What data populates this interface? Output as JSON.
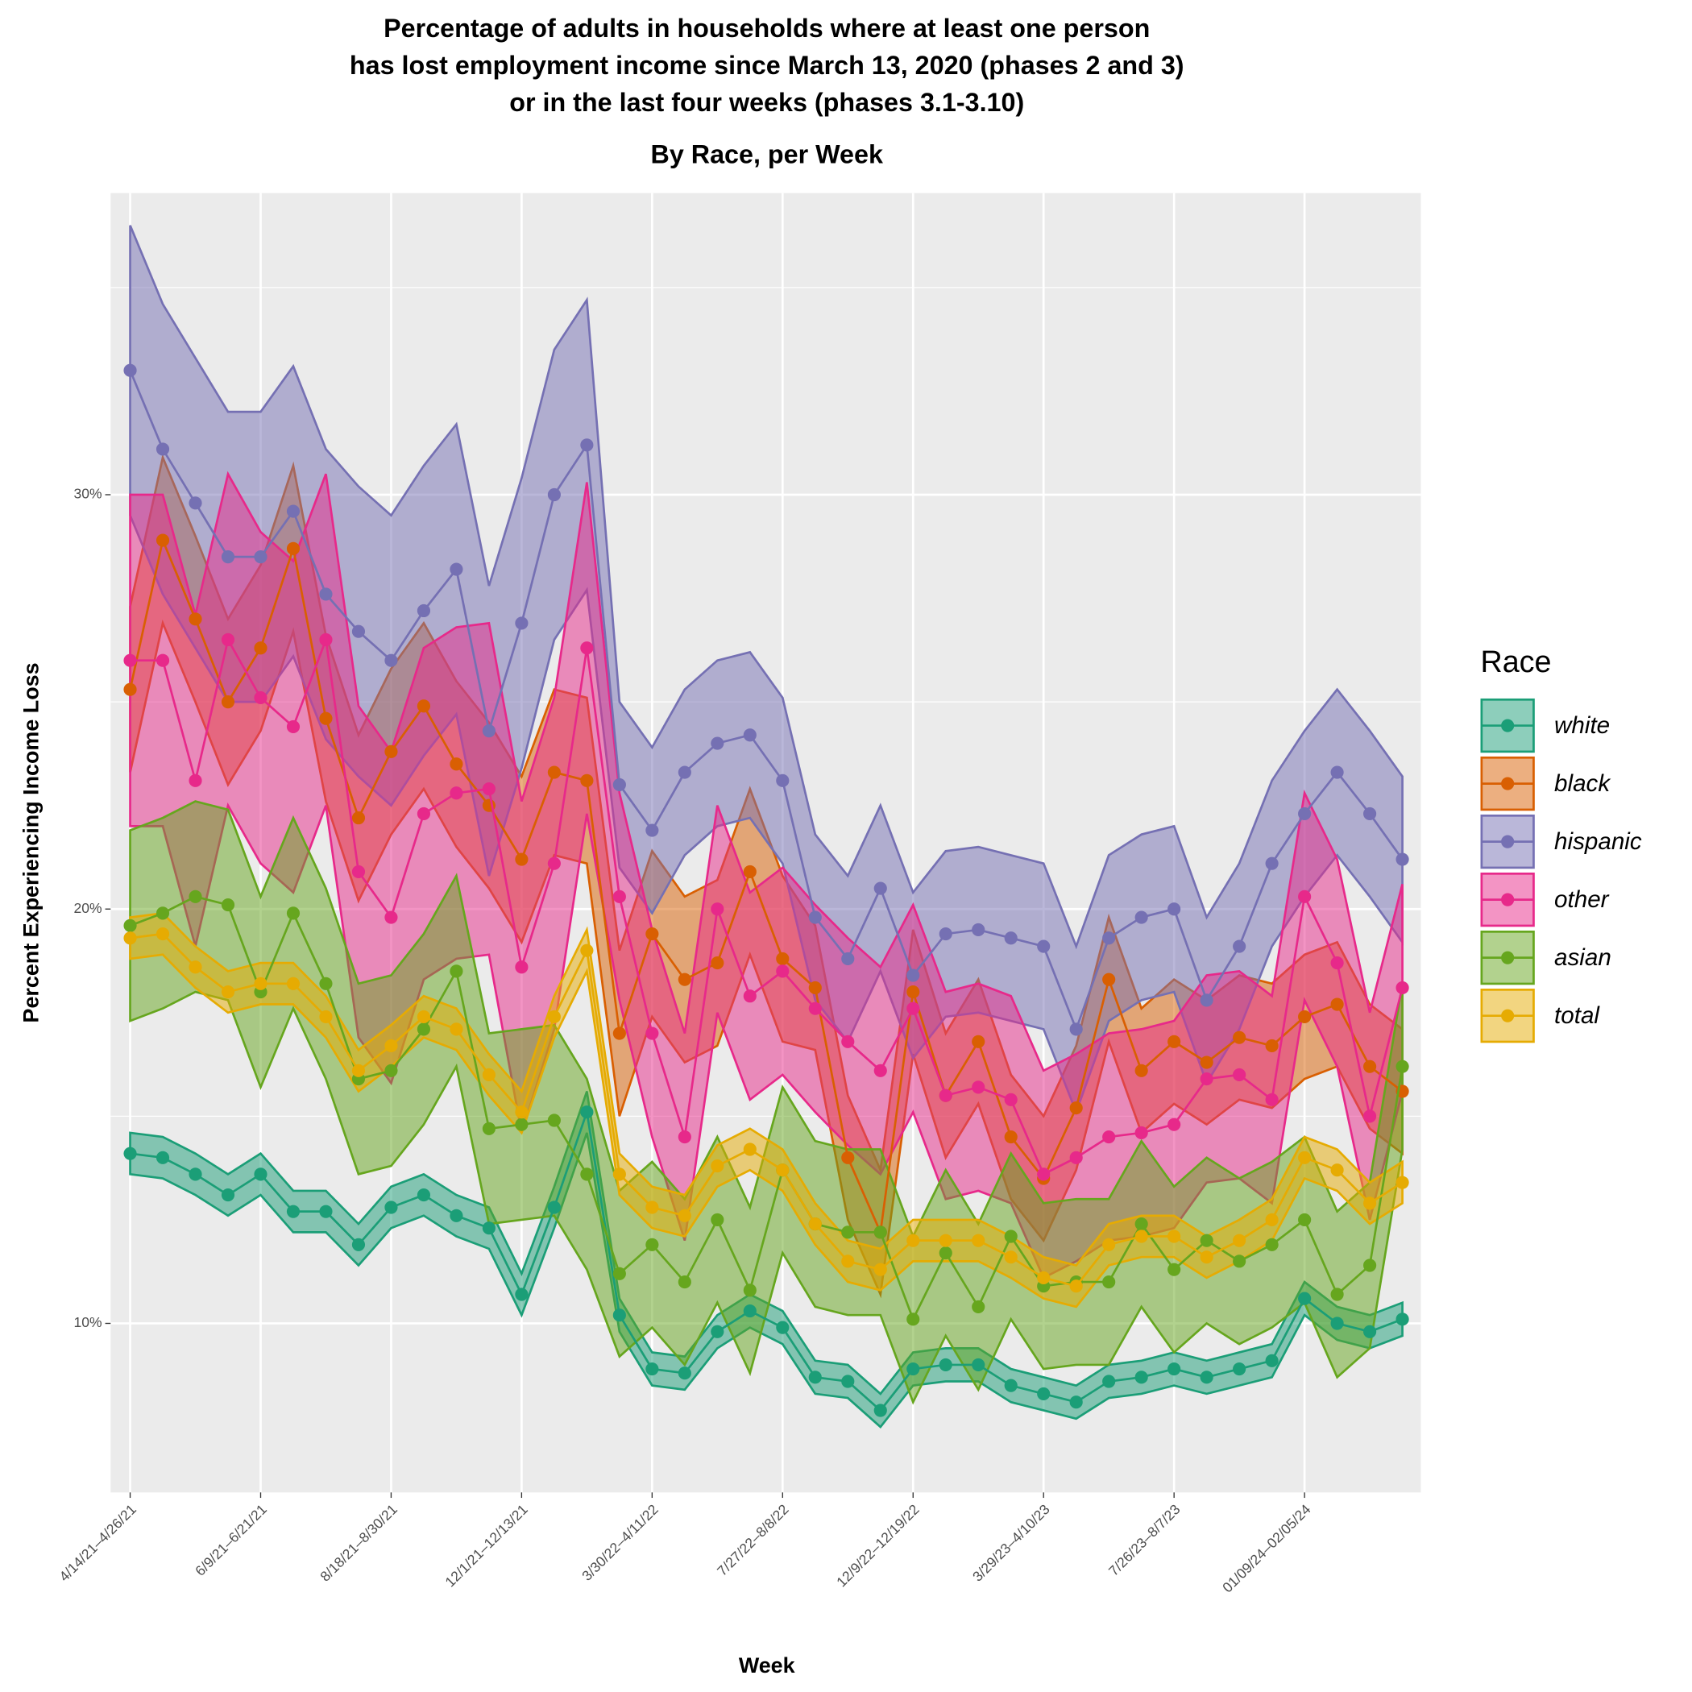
{
  "chart_data": {
    "type": "ribbon-line",
    "title": [
      "Percentage of adults in households where at least one person",
      "has lost employment income since March 13, 2020 (phases 2 and 3)",
      "or in the last four weeks (phases 3.1-3.10)"
    ],
    "subtitle": "By Race, per Week",
    "x_label": "Week",
    "y_label": "Percent Experiencing Income Loss",
    "legend_title": "Race",
    "legend": "right",
    "grid": true,
    "categories": [
      "4/14/21–4/26/21",
      null,
      null,
      null,
      "6/9/21–6/21/21",
      null,
      null,
      null,
      "8/18/21–8/30/21",
      null,
      null,
      null,
      "12/1/21–12/13/21",
      null,
      null,
      null,
      "3/30/22–4/11/22",
      null,
      null,
      null,
      "7/27/22–8/8/22",
      null,
      null,
      null,
      "12/9/22–12/19/22",
      null,
      null,
      null,
      "3/29/23–4/10/23",
      null,
      null,
      null,
      "7/26/23–8/7/23",
      null,
      null,
      null,
      "01/09/24–02/05/24",
      null,
      null,
      null
    ],
    "ylim": [
      5.92,
      37.28
    ],
    "yticks": [
      {
        "value": 10,
        "label": "10%"
      },
      {
        "value": 20,
        "label": "20%"
      },
      {
        "value": 30,
        "label": "30%"
      }
    ],
    "minor_yticks": [
      15,
      25,
      35
    ],
    "series": [
      {
        "name": "white",
        "color": "#1b9e77",
        "values": [
          14.1,
          14.0,
          13.6,
          13.1,
          13.6,
          12.7,
          12.7,
          11.9,
          12.8,
          13.1,
          12.6,
          12.3,
          10.7,
          12.8,
          15.1,
          10.2,
          8.9,
          8.8,
          9.8,
          10.3,
          9.9,
          8.7,
          8.6,
          7.9,
          8.9,
          9.0,
          9.0,
          8.5,
          8.3,
          8.1,
          8.6,
          8.7,
          8.9,
          8.7,
          8.9,
          9.1,
          10.6,
          10.0,
          9.8,
          10.1
        ],
        "errors": [
          0.5,
          0.5,
          0.5,
          0.5,
          0.5,
          0.5,
          0.5,
          0.5,
          0.5,
          0.5,
          0.5,
          0.5,
          0.5,
          0.5,
          0.5,
          0.4,
          0.4,
          0.4,
          0.4,
          0.4,
          0.4,
          0.4,
          0.4,
          0.4,
          0.4,
          0.4,
          0.4,
          0.4,
          0.4,
          0.4,
          0.4,
          0.4,
          0.4,
          0.4,
          0.4,
          0.4,
          0.4,
          0.4,
          0.4,
          0.4
        ]
      },
      {
        "name": "black",
        "color": "#d95f02",
        "values": [
          25.3,
          28.9,
          27.0,
          25.0,
          26.3,
          28.7,
          24.6,
          22.2,
          23.8,
          24.9,
          23.5,
          22.5,
          21.2,
          23.3,
          23.1,
          17.0,
          19.4,
          18.3,
          18.7,
          20.9,
          18.8,
          18.1,
          14.0,
          12.2,
          18.0,
          15.5,
          16.8,
          14.5,
          13.5,
          15.2,
          18.3,
          16.1,
          16.8,
          16.3,
          16.9,
          16.7,
          17.4,
          17.7,
          16.2,
          15.6
        ],
        "errors": [
          2.0,
          2.0,
          2.0,
          2.0,
          2.0,
          2.0,
          2.0,
          2.0,
          2.0,
          2.0,
          2.0,
          2.0,
          2.0,
          2.0,
          2.0,
          2.0,
          2.0,
          2.0,
          2.0,
          2.0,
          2.0,
          1.5,
          1.5,
          1.5,
          1.5,
          1.5,
          1.5,
          1.5,
          1.5,
          1.5,
          1.5,
          1.5,
          1.5,
          1.5,
          1.5,
          1.5,
          1.5,
          1.5,
          1.5,
          1.5
        ]
      },
      {
        "name": "hispanic",
        "color": "#7570b3",
        "values": [
          33.0,
          31.1,
          29.8,
          28.5,
          28.5,
          29.6,
          27.6,
          26.7,
          26.0,
          27.2,
          28.2,
          24.3,
          26.9,
          30.0,
          31.2,
          23.0,
          21.9,
          23.3,
          24.0,
          24.2,
          23.1,
          19.8,
          18.8,
          20.5,
          18.4,
          19.4,
          19.5,
          19.3,
          19.1,
          17.1,
          19.3,
          19.8,
          20.0,
          17.8,
          19.1,
          21.1,
          22.3,
          23.3,
          22.3,
          21.2
        ],
        "errors": [
          3.5,
          3.5,
          3.5,
          3.5,
          3.5,
          3.5,
          3.5,
          3.5,
          3.5,
          3.5,
          3.5,
          3.5,
          3.5,
          3.5,
          3.5,
          2.0,
          2.0,
          2.0,
          2.0,
          2.0,
          2.0,
          2.0,
          2.0,
          2.0,
          2.0,
          2.0,
          2.0,
          2.0,
          2.0,
          2.0,
          2.0,
          2.0,
          2.0,
          2.0,
          2.0,
          2.0,
          2.0,
          2.0,
          2.0,
          2.0
        ]
      },
      {
        "name": "other",
        "color": "#e7298a",
        "values": [
          26.0,
          26.0,
          23.1,
          26.5,
          25.1,
          24.4,
          26.5,
          20.9,
          19.8,
          22.3,
          22.8,
          22.9,
          18.6,
          21.1,
          26.3,
          20.3,
          17.0,
          14.5,
          20.0,
          17.9,
          18.5,
          17.6,
          16.8,
          16.1,
          17.6,
          15.5,
          15.7,
          15.4,
          13.6,
          14.0,
          14.5,
          14.6,
          14.8,
          15.9,
          16.0,
          15.4,
          20.3,
          18.7,
          15.0,
          18.1
        ],
        "errors": [
          4.0,
          4.0,
          4.0,
          4.0,
          4.0,
          4.0,
          4.0,
          4.0,
          4.0,
          4.0,
          4.0,
          4.0,
          4.0,
          4.0,
          4.0,
          2.5,
          2.5,
          2.5,
          2.5,
          2.5,
          2.5,
          2.5,
          2.5,
          2.5,
          2.5,
          2.5,
          2.5,
          2.5,
          2.5,
          2.5,
          2.5,
          2.5,
          2.5,
          2.5,
          2.5,
          2.5,
          2.5,
          2.5,
          2.5,
          2.5
        ]
      },
      {
        "name": "asian",
        "color": "#66a61e",
        "values": [
          19.6,
          19.9,
          20.3,
          20.1,
          18.0,
          19.9,
          18.2,
          15.9,
          16.1,
          17.1,
          18.5,
          14.7,
          14.8,
          14.9,
          13.6,
          11.2,
          11.9,
          11.0,
          12.5,
          10.8,
          13.7,
          12.4,
          12.2,
          12.2,
          10.1,
          11.7,
          10.4,
          12.1,
          10.9,
          11.0,
          11.0,
          12.4,
          11.3,
          12.0,
          11.5,
          11.9,
          12.5,
          10.7,
          11.4,
          16.2
        ],
        "errors": [
          2.3,
          2.3,
          2.3,
          2.3,
          2.3,
          2.3,
          2.3,
          2.3,
          2.3,
          2.3,
          2.3,
          2.3,
          2.3,
          2.3,
          2.3,
          2.0,
          2.0,
          2.0,
          2.0,
          2.0,
          2.0,
          2.0,
          2.0,
          2.0,
          2.0,
          2.0,
          2.0,
          2.0,
          2.0,
          2.0,
          2.0,
          2.0,
          2.0,
          2.0,
          2.0,
          2.0,
          2.0,
          2.0,
          2.0,
          2.0
        ]
      },
      {
        "name": "total",
        "color": "#e6ab02",
        "values": [
          19.3,
          19.4,
          18.6,
          18.0,
          18.2,
          18.2,
          17.4,
          16.1,
          16.7,
          17.4,
          17.1,
          16.0,
          15.1,
          17.4,
          19.0,
          13.6,
          12.8,
          12.6,
          13.8,
          14.2,
          13.7,
          12.4,
          11.5,
          11.3,
          12.0,
          12.0,
          12.0,
          11.6,
          11.1,
          10.9,
          11.9,
          12.1,
          12.1,
          11.6,
          12.0,
          12.5,
          14.0,
          13.7,
          12.9,
          13.4
        ],
        "errors": [
          0.5,
          0.5,
          0.5,
          0.5,
          0.5,
          0.5,
          0.5,
          0.5,
          0.5,
          0.5,
          0.5,
          0.5,
          0.5,
          0.5,
          0.5,
          0.5,
          0.5,
          0.5,
          0.5,
          0.5,
          0.5,
          0.5,
          0.5,
          0.5,
          0.5,
          0.5,
          0.5,
          0.5,
          0.5,
          0.5,
          0.5,
          0.5,
          0.5,
          0.5,
          0.5,
          0.5,
          0.5,
          0.5,
          0.5,
          0.5
        ]
      }
    ]
  }
}
